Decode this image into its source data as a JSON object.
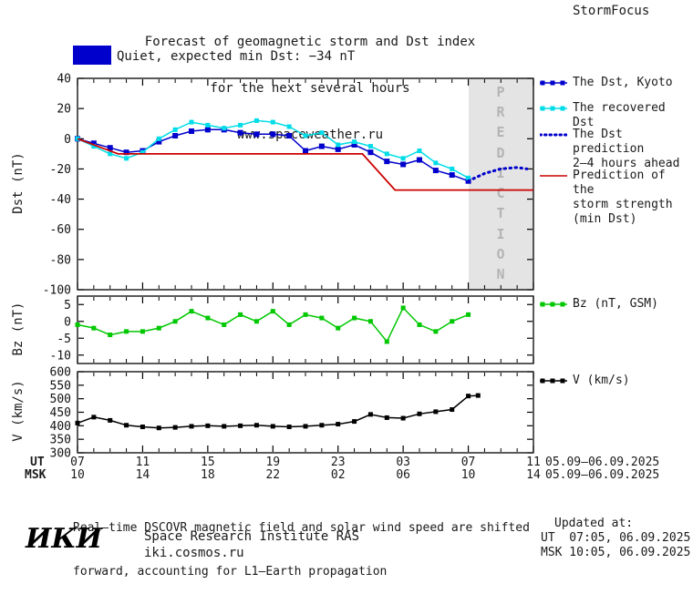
{
  "header": {
    "title_line1": "Forecast of geomagnetic storm and Dst index",
    "title_line2": "for the next several hours",
    "title_line3": "www.spaceweather.ru",
    "brand": "StormFocus"
  },
  "status": {
    "label": "Quiet, expected min Dst: −34 nT",
    "box_color": "#0000cc"
  },
  "prediction_band_label": "PREDICTION",
  "legends": [
    {
      "color": "#0000cc",
      "style": "squares",
      "lines": [
        "The Dst, Kyoto"
      ]
    },
    {
      "color": "#00dde8",
      "style": "squares",
      "lines": [
        "The recovered Dst"
      ]
    },
    {
      "color": "#0000cc",
      "style": "dotted",
      "lines": [
        "The Dst prediction",
        "2–4 hours ahead"
      ]
    },
    {
      "color": "#cc0000",
      "style": "line",
      "lines": [
        "Prediction of the",
        "storm strength",
        "(min Dst)"
      ]
    },
    {
      "color": "#00c800",
      "style": "squares",
      "lines": [
        "Bz (nT, GSM)"
      ]
    },
    {
      "color": "#000000",
      "style": "squares",
      "lines": [
        "V (km/s)"
      ]
    }
  ],
  "chart_data": [
    {
      "type": "line",
      "name": "dst-panel",
      "ylabel": "Dst (nT)",
      "ylim": [
        -100,
        40
      ],
      "yticks": [
        40,
        20,
        0,
        -20,
        -40,
        -60,
        -80,
        -100
      ],
      "xlim": [
        7,
        35
      ],
      "xticks": [
        7,
        11,
        15,
        19,
        23,
        27,
        31,
        35
      ],
      "grid": false,
      "legend_position": "right",
      "prediction_band": [
        31,
        35
      ],
      "series": [
        {
          "name": "The Dst, Kyoto",
          "color": "#0000cc",
          "width": 1.5,
          "marker": 6,
          "x": [
            7,
            8,
            9,
            10,
            11,
            12,
            13,
            14,
            15,
            16,
            17,
            18,
            19,
            20,
            21,
            22,
            23,
            24,
            25,
            26,
            27,
            28,
            29,
            30,
            31
          ],
          "y": [
            0,
            -3,
            -6,
            -9,
            -8,
            -2,
            2,
            5,
            6,
            6,
            4,
            3,
            3,
            2,
            -8,
            -5,
            -7,
            -4,
            -9,
            -15,
            -17,
            -14,
            -21,
            -24,
            -28
          ]
        },
        {
          "name": "The recovered Dst",
          "color": "#00dde8",
          "width": 1.5,
          "marker": 5,
          "x": [
            7,
            8,
            9,
            10,
            11,
            12,
            13,
            14,
            15,
            16,
            17,
            18,
            19,
            20,
            21,
            22,
            23,
            24,
            25,
            26,
            27,
            28,
            29,
            30,
            31
          ],
          "y": [
            0,
            -5,
            -10,
            -13,
            -9,
            0,
            6,
            11,
            9,
            7,
            9,
            12,
            11,
            8,
            2,
            4,
            -4,
            -2,
            -5,
            -10,
            -13,
            -8,
            -16,
            -20,
            -26
          ]
        },
        {
          "name": "The Dst prediction 2–4 hours ahead",
          "color": "#0000cc",
          "width": 3,
          "dash": "1.5,4.5",
          "x": [
            31,
            32,
            33,
            34,
            34.6
          ],
          "y": [
            -28,
            -23,
            -20,
            -19,
            -20
          ]
        },
        {
          "name": "Prediction of the storm strength (min Dst)",
          "color": "#cc0000",
          "width": 1.8,
          "x": [
            7,
            9.5,
            24.5,
            26.5,
            35
          ],
          "y": [
            0,
            -10,
            -10,
            -34,
            -34
          ]
        }
      ]
    },
    {
      "type": "line",
      "name": "bz-panel",
      "ylabel": "Bz (nT)",
      "ylim": [
        -12.5,
        7.5
      ],
      "yticks": [
        5,
        0,
        -5,
        -10
      ],
      "xlim": [
        7,
        35
      ],
      "xticks": [
        7,
        11,
        15,
        19,
        23,
        27,
        31,
        35
      ],
      "grid": false,
      "series": [
        {
          "name": "Bz (nT, GSM)",
          "color": "#00c800",
          "width": 1.5,
          "marker": 5,
          "x": [
            7,
            8,
            9,
            10,
            11,
            12,
            13,
            14,
            15,
            16,
            17,
            18,
            19,
            20,
            21,
            22,
            23,
            24,
            25,
            26,
            27,
            28,
            29,
            30,
            31
          ],
          "y": [
            -1,
            -2,
            -4,
            -3,
            -3,
            -2,
            0,
            3,
            1,
            -1,
            2,
            0,
            3,
            -1,
            2,
            1,
            -2,
            1,
            0,
            -6,
            4,
            -1,
            -3,
            0,
            2
          ]
        }
      ]
    },
    {
      "type": "line",
      "name": "v-panel",
      "ylabel": "V (km/s)",
      "ylim": [
        300,
        600
      ],
      "yticks": [
        600,
        550,
        500,
        450,
        400,
        350,
        300
      ],
      "xlim": [
        7,
        35
      ],
      "xticks": [
        7,
        11,
        15,
        19,
        23,
        27,
        31,
        35
      ],
      "grid": false,
      "series": [
        {
          "name": "V (km/s)",
          "color": "#000000",
          "width": 1.5,
          "marker": 5,
          "x": [
            7,
            8,
            9,
            10,
            11,
            12,
            13,
            14,
            15,
            16,
            17,
            18,
            19,
            20,
            21,
            22,
            23,
            24,
            25,
            26,
            27,
            28,
            29,
            30,
            31,
            31.6
          ],
          "y": [
            410,
            432,
            420,
            402,
            396,
            392,
            394,
            398,
            400,
            398,
            400,
            402,
            398,
            396,
            398,
            402,
            406,
            416,
            442,
            430,
            428,
            444,
            452,
            460,
            510,
            512
          ]
        }
      ]
    }
  ],
  "xaxis": {
    "ut_label": "UT",
    "msk_label": "MSK",
    "ut_ticks": [
      "07",
      "11",
      "15",
      "19",
      "23",
      "03",
      "07",
      "11"
    ],
    "msk_ticks": [
      "10",
      "14",
      "18",
      "22",
      "02",
      "06",
      "10",
      "14"
    ],
    "date_range": "05.09–06.09.2025"
  },
  "footer": {
    "line1": "Real–time DSCOVR magnetic field and solar wind speed are shifted",
    "line2": "forward, accounting for L1–Earth propagation"
  },
  "org": {
    "logo": "ИКИ",
    "name": "Space Research Institute RAS",
    "site": "iki.cosmos.ru"
  },
  "updated": {
    "label": "Updated at:",
    "ut": "UT  07:05, 06.09.2025",
    "msk": "MSK 10:05, 06.09.2025"
  }
}
